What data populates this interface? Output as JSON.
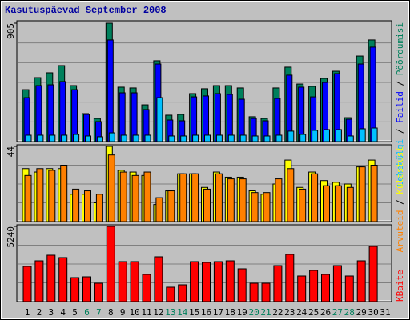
{
  "chart_data": [
    {
      "type": "bar",
      "title": "Kasutuspäevad September 2008",
      "ylim": [
        0,
        905
      ],
      "yticks": [
        905
      ],
      "series": [
        {
          "name": "Pöördumisi",
          "color": "#00805c",
          "values": [
            397,
            489,
            526,
            581,
            428,
            214,
            177,
            905,
            416,
            410,
            281,
            618,
            202,
            208,
            367,
            404,
            428,
            428,
            410,
            190,
            177,
            410,
            569,
            440,
            422,
            483,
            538,
            183,
            654,
            777,
            null
          ]
        },
        {
          "name": "Failid",
          "color": "#0000ff",
          "values": [
            336,
            428,
            434,
            459,
            397,
            208,
            153,
            777,
            373,
            373,
            245,
            593,
            165,
            159,
            342,
            349,
            367,
            361,
            324,
            177,
            159,
            330,
            508,
            416,
            342,
            452,
            520,
            171,
            593,
            722,
            null
          ]
        },
        {
          "name": "Lehekülgi",
          "color": "#00c0ff",
          "values": [
            49,
            49,
            49,
            49,
            55,
            43,
            37,
            67,
            49,
            49,
            49,
            336,
            43,
            43,
            49,
            49,
            49,
            49,
            49,
            43,
            43,
            49,
            80,
            55,
            86,
            92,
            92,
            43,
            98,
            104,
            null
          ]
        }
      ]
    },
    {
      "type": "bar",
      "ylim": [
        0,
        44
      ],
      "yticks": [
        44
      ],
      "series": [
        {
          "name": "Külastusi",
          "color": "#ffff00",
          "values": [
            31,
            29,
            31,
            31,
            16,
            16,
            11,
            44,
            30,
            29,
            27,
            10,
            18,
            28,
            28,
            20,
            29,
            26,
            26,
            18,
            16,
            22,
            36,
            20,
            29,
            24,
            23,
            22,
            32,
            36,
            null
          ]
        },
        {
          "name": "Arvuteid",
          "color": "#ff8000",
          "values": [
            27,
            31,
            30,
            33,
            19,
            18,
            16,
            39,
            29,
            27,
            29,
            14,
            18,
            28,
            28,
            19,
            28,
            25,
            25,
            17,
            17,
            25,
            31,
            19,
            28,
            21,
            21,
            20,
            32,
            33,
            null
          ]
        }
      ]
    },
    {
      "type": "bar",
      "ylim": [
        0,
        5240
      ],
      "yticks": [
        5240
      ],
      "categories": [
        "1",
        "2",
        "3",
        "4",
        "5",
        "6",
        "7",
        "8",
        "9",
        "10",
        "11",
        "12",
        "13",
        "14",
        "15",
        "16",
        "17",
        "18",
        "19",
        "20",
        "21",
        "22",
        "23",
        "24",
        "25",
        "26",
        "27",
        "28",
        "29",
        "30",
        "31"
      ],
      "category_colors": [
        "#000000",
        "#000000",
        "#000000",
        "#000000",
        "#000000",
        "#00805c",
        "#00805c",
        "#000000",
        "#000000",
        "#000000",
        "#000000",
        "#000000",
        "#00805c",
        "#00805c",
        "#000000",
        "#000000",
        "#000000",
        "#000000",
        "#000000",
        "#00805c",
        "#00805c",
        "#000000",
        "#000000",
        "#000000",
        "#000000",
        "#000000",
        "#00805c",
        "#00805c",
        "#000000",
        "#000000",
        "#000000"
      ],
      "series": [
        {
          "name": "KBaite",
          "color": "#ff0000",
          "values": [
            2453,
            2843,
            3234,
            3067,
            1672,
            1728,
            1282,
            5240,
            2787,
            2787,
            1895,
            3122,
            1004,
            1171,
            2787,
            2732,
            2787,
            2843,
            2286,
            1282,
            1282,
            2509,
            3290,
            1784,
            2174,
            1895,
            2509,
            1784,
            2843,
            3847,
            null
          ]
        }
      ]
    }
  ]
}
